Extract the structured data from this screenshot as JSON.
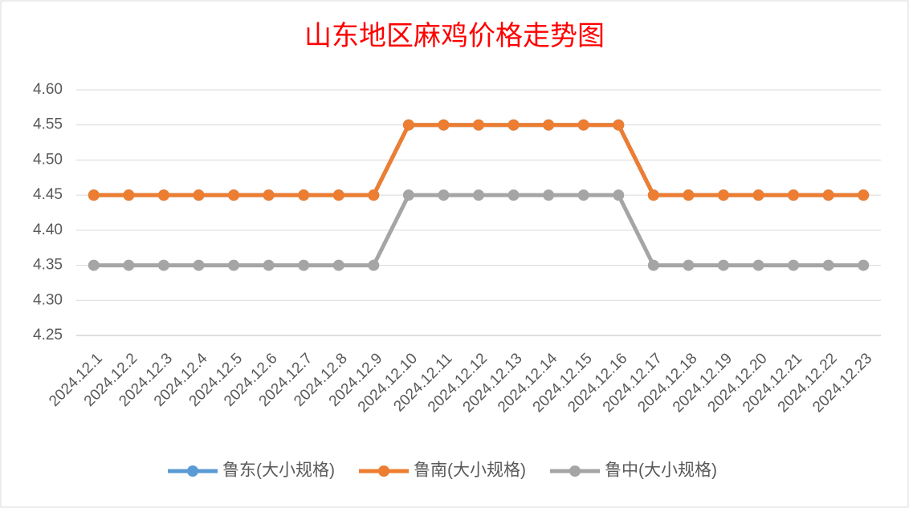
{
  "chart_data": {
    "type": "line",
    "title": "山东地区麻鸡价格走势图",
    "categories": [
      "2024.12.1",
      "2024.12.2",
      "2024.12.3",
      "2024.12.4",
      "2024.12.5",
      "2024.12.6",
      "2024.12.7",
      "2024.12.8",
      "2024.12.9",
      "2024.12.10",
      "2024.12.11",
      "2024.12.12",
      "2024.12.13",
      "2024.12.14",
      "2024.12.15",
      "2024.12.16",
      "2024.12.17",
      "2024.12.18",
      "2024.12.19",
      "2024.12.20",
      "2024.12.21",
      "2024.12.22",
      "2024.12.23"
    ],
    "series": [
      {
        "name": "鲁东(大小规格)",
        "color": "#5b9bd5",
        "values": [
          4.45,
          4.45,
          4.45,
          4.45,
          4.45,
          4.45,
          4.45,
          4.45,
          4.45,
          4.55,
          4.55,
          4.55,
          4.55,
          4.55,
          4.55,
          4.55,
          4.45,
          4.45,
          4.45,
          4.45,
          4.45,
          4.45,
          4.45
        ]
      },
      {
        "name": "鲁南(大小规格)",
        "color": "#ed7d31",
        "values": [
          4.45,
          4.45,
          4.45,
          4.45,
          4.45,
          4.45,
          4.45,
          4.45,
          4.45,
          4.55,
          4.55,
          4.55,
          4.55,
          4.55,
          4.55,
          4.55,
          4.45,
          4.45,
          4.45,
          4.45,
          4.45,
          4.45,
          4.45
        ]
      },
      {
        "name": "鲁中(大小规格)",
        "color": "#a5a5a5",
        "values": [
          4.35,
          4.35,
          4.35,
          4.35,
          4.35,
          4.35,
          4.35,
          4.35,
          4.35,
          4.45,
          4.45,
          4.45,
          4.45,
          4.45,
          4.45,
          4.45,
          4.35,
          4.35,
          4.35,
          4.35,
          4.35,
          4.35,
          4.35
        ]
      }
    ],
    "ylim": [
      4.25,
      4.6
    ],
    "yticks": [
      4.25,
      {
        "value": 4.3,
        "label": "4.30"
      },
      4.35,
      {
        "value": 4.4,
        "label": "4.40"
      },
      4.45,
      {
        "value": 4.5,
        "label": "4.50"
      },
      4.55,
      {
        "value": 4.6,
        "label": "4.60"
      }
    ],
    "grid": true,
    "legend": "bottom"
  }
}
